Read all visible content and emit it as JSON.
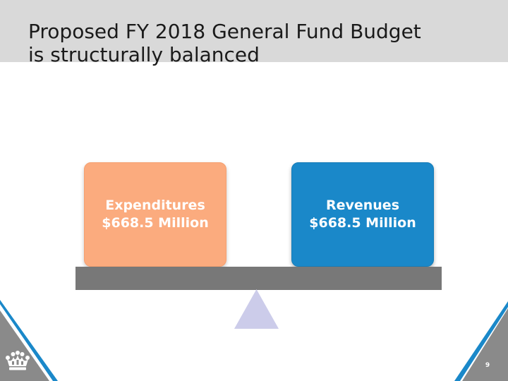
{
  "slide": {
    "title_line1": "Proposed FY 2018 General Fund Budget",
    "title_line2": "is structurally balanced",
    "page_number": "9"
  },
  "scale": {
    "left": {
      "label": "Expenditures",
      "amount": "$668.5 Million",
      "color": "#fbab7e"
    },
    "right": {
      "label": "Revenues",
      "amount": "$668.5 Million",
      "color": "#1a88c9"
    },
    "beam_color": "#787878",
    "fulcrum_color": "#ccccea"
  },
  "decorations": {
    "corner_color": "#8a8a8a",
    "accent_color": "#1a88c9",
    "logo_icon": "crown-icon"
  }
}
